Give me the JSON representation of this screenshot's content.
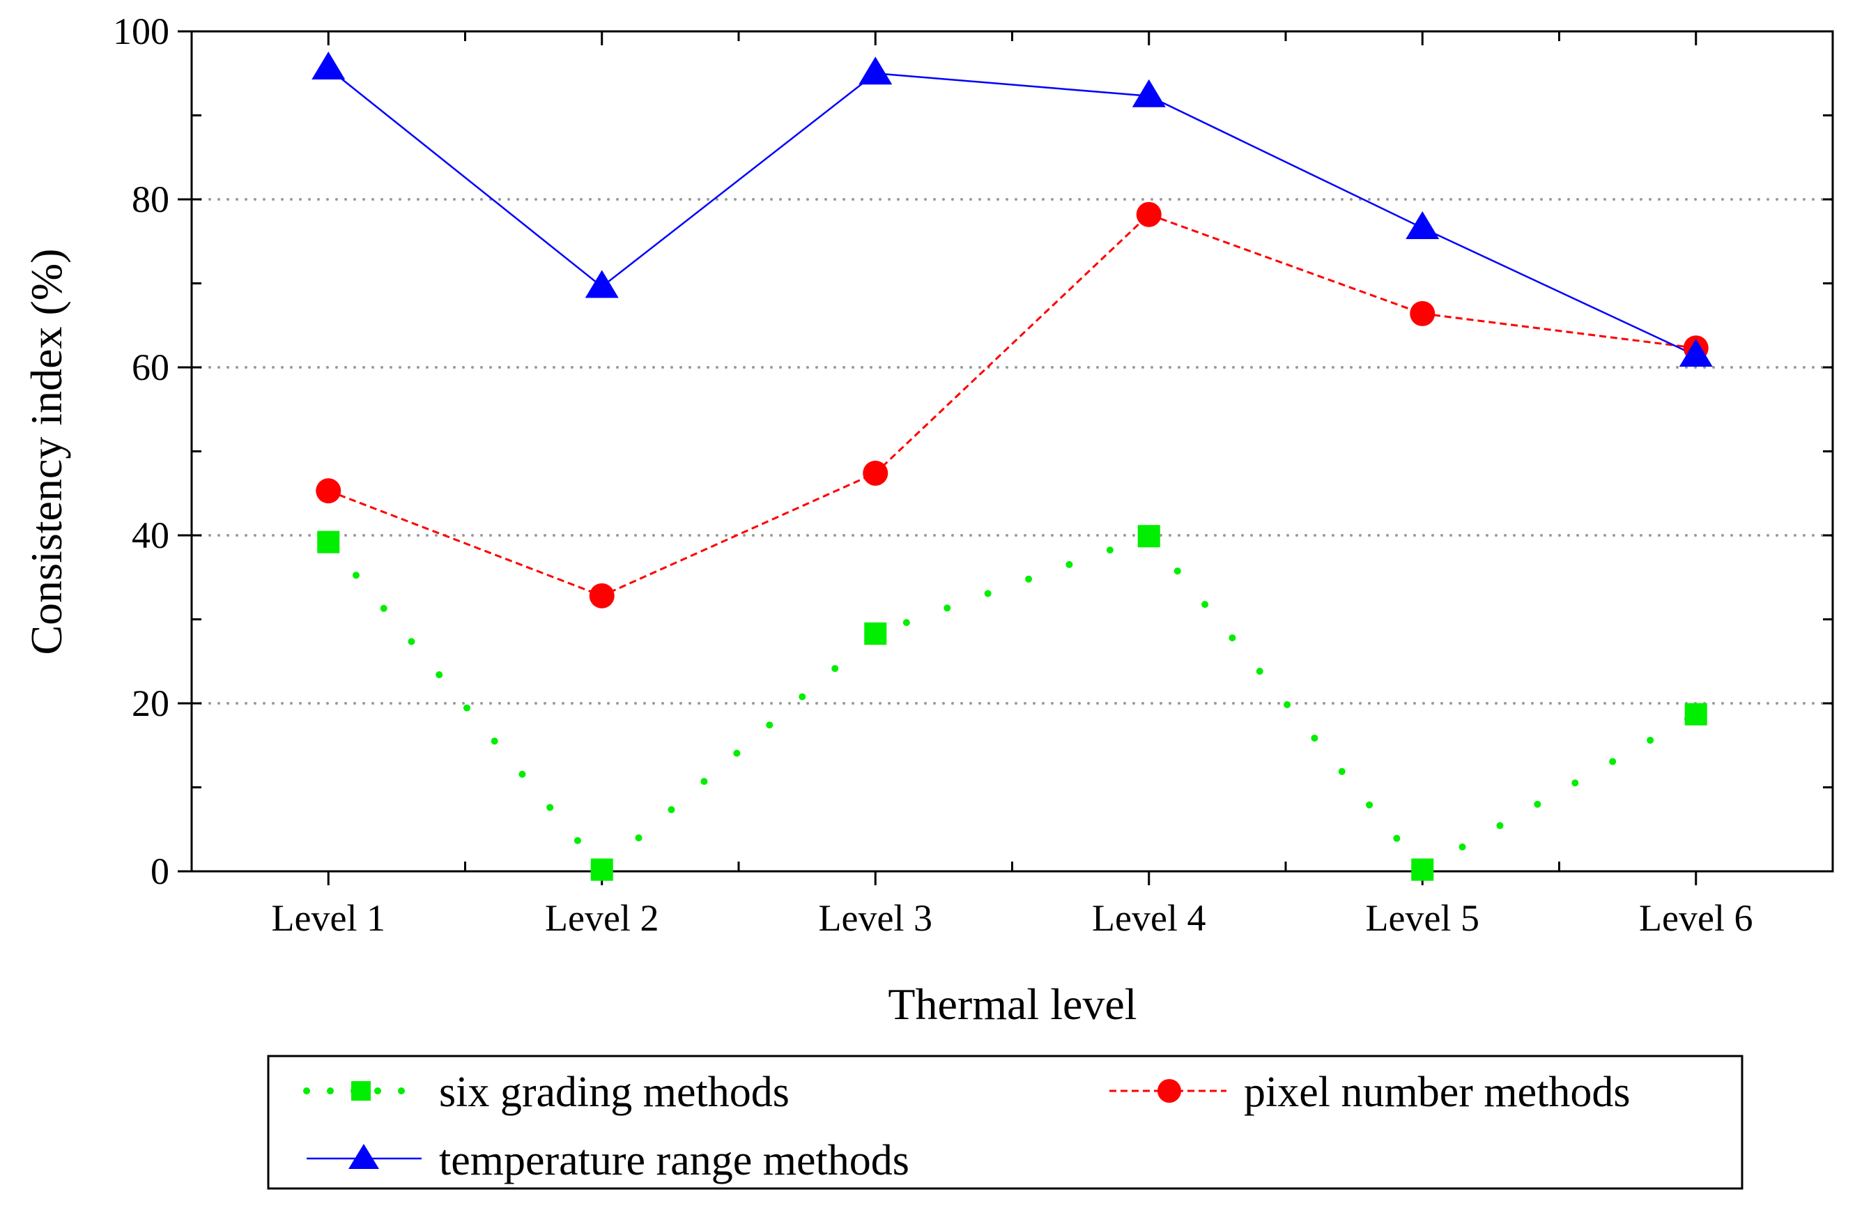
{
  "chart_data": {
    "type": "line",
    "title": "",
    "xlabel": "Thermal level",
    "ylabel": "Consistency index (%)",
    "categories": [
      "Level 1",
      "Level 2",
      "Level 3",
      "Level 4",
      "Level 5",
      "Level 6"
    ],
    "ylim": [
      0,
      100
    ],
    "yticks": [
      0,
      20,
      40,
      60,
      80,
      100
    ],
    "ytick_labels": [
      "0",
      "20",
      "40",
      "60",
      "80",
      "100"
    ],
    "grid": "horizontal dotted at 20, 40, 60, 80",
    "legend_position": "bottom",
    "series": [
      {
        "name": "six grading methods",
        "color": "#00ee00",
        "marker": "square",
        "line_style": "dotted",
        "values": [
          39.2,
          0.2,
          28.3,
          39.9,
          0.2,
          18.7
        ]
      },
      {
        "name": "pixel number methods",
        "color": "#ff0000",
        "marker": "circle",
        "line_style": "dashed",
        "values": [
          45.3,
          32.8,
          47.4,
          78.2,
          66.4,
          62.3
        ]
      },
      {
        "name": "temperature range methods",
        "color": "#0000ff",
        "marker": "triangle",
        "line_style": "solid",
        "values": [
          95.6,
          69.6,
          95.0,
          92.3,
          76.6,
          61.4
        ]
      }
    ]
  }
}
